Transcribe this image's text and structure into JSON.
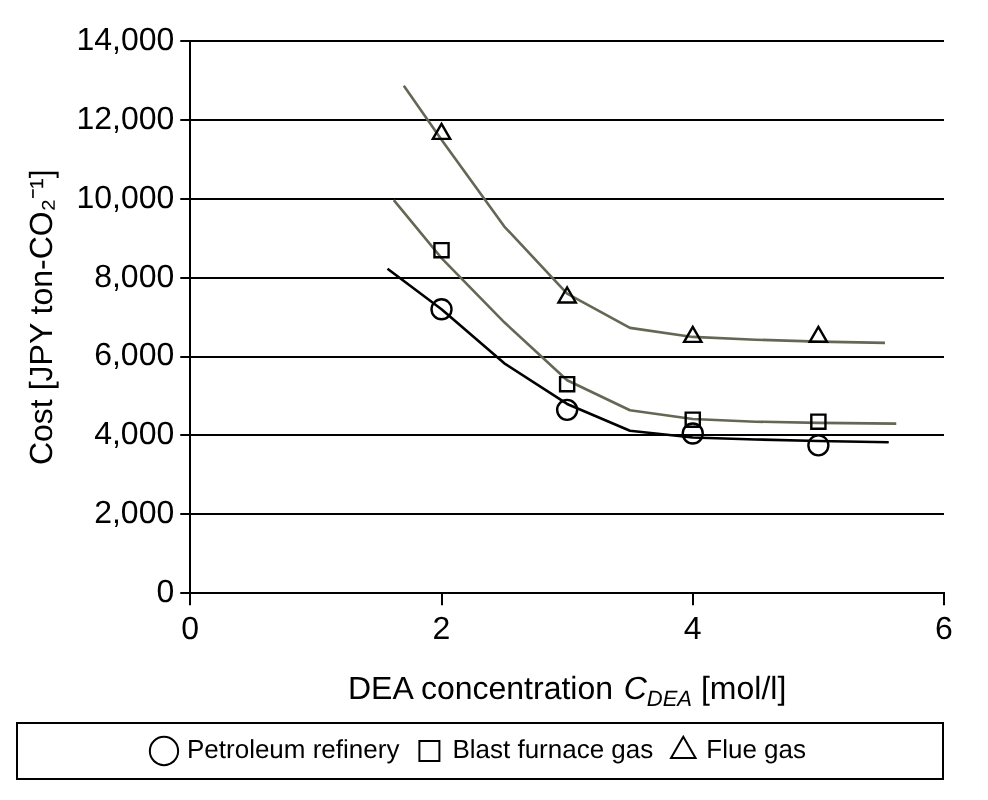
{
  "chart_data": {
    "type": "scatter",
    "xlabel": "DEA concentration C$_{DEA}$ [mol/l]",
    "ylabel": "Cost [JPY ton-CO₂⁻¹]",
    "xlim": [
      0,
      6
    ],
    "xticks": [
      0,
      2,
      4,
      6
    ],
    "ylim": [
      0,
      14000
    ],
    "yticks": [
      {
        "value": 0,
        "label": "0"
      },
      {
        "value": 2000,
        "label": "2,000"
      },
      {
        "value": 4000,
        "label": "4,000"
      },
      {
        "value": 6000,
        "label": "6,000"
      },
      {
        "value": 8000,
        "label": "8,000"
      },
      {
        "value": 10000,
        "label": "10,000"
      },
      {
        "value": 12000,
        "label": "12,000"
      },
      {
        "value": 14000,
        "label": "14,000"
      }
    ],
    "grid": "y",
    "legend": "bottom",
    "series": [
      {
        "name": "Petroleum refinery",
        "marker": "circle",
        "color": "#000000",
        "x": [
          2,
          3,
          4,
          5
        ],
        "values": [
          7200,
          4650,
          4050,
          3750
        ]
      },
      {
        "name": "Blast furnace gas",
        "marker": "square",
        "color": "#000000",
        "x": [
          2,
          3,
          4,
          5
        ],
        "values": [
          8700,
          5300,
          4400,
          4350
        ]
      },
      {
        "name": "Flue gas",
        "marker": "triangle",
        "color": "#000000",
        "x": [
          2,
          3,
          4,
          5
        ],
        "values": [
          11650,
          7500,
          6500,
          6500
        ]
      },
      {
        "type": "line",
        "marker": "none",
        "color": "#000000",
        "x": [
          1.57,
          2,
          2.5,
          3,
          3.5,
          4,
          4.5,
          5,
          5.56
        ],
        "values": [
          8230,
          7200,
          5830,
          4800,
          4120,
          3950,
          3900,
          3860,
          3830
        ]
      },
      {
        "type": "line",
        "marker": "none",
        "color": "#666655",
        "x": [
          1.62,
          2,
          2.5,
          3,
          3.5,
          4,
          4.5,
          5,
          5.62
        ],
        "values": [
          9970,
          8500,
          6870,
          5400,
          4640,
          4420,
          4350,
          4320,
          4300
        ]
      },
      {
        "type": "line",
        "marker": "none",
        "color": "#666655",
        "x": [
          1.7,
          2,
          2.5,
          3,
          3.5,
          4,
          4.5,
          5,
          5.53
        ],
        "values": [
          12870,
          11500,
          9300,
          7600,
          6730,
          6500,
          6430,
          6380,
          6350
        ]
      }
    ]
  }
}
